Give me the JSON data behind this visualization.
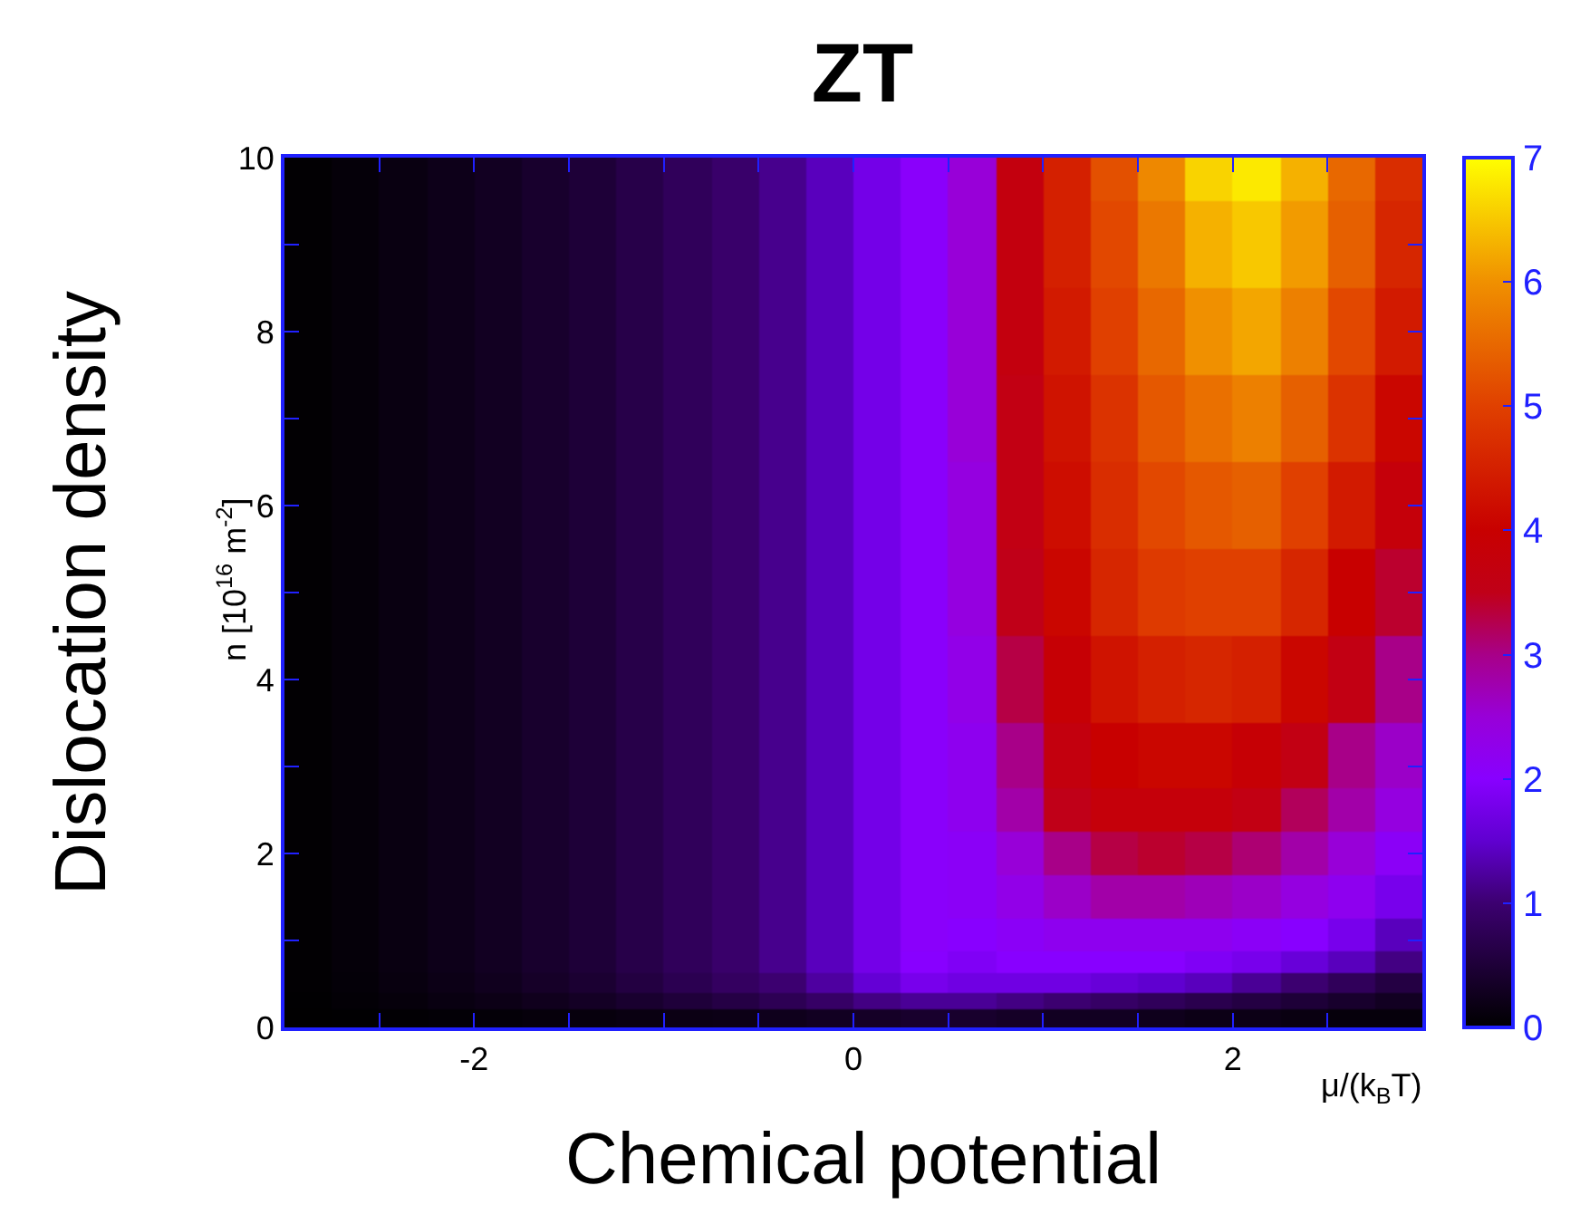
{
  "chart_data": {
    "type": "heatmap",
    "title": "ZT",
    "xlabel": "Chemical potential",
    "ylabel": "Dislocation density",
    "annotations": [
      "μ/(k$_{B}$T)",
      "n [10$^{16}$ m$^{-2}$]"
    ],
    "x": [
      -2.875,
      -2.625,
      -2.375,
      -2.125,
      -1.875,
      -1.625,
      -1.375,
      -1.125,
      -0.875,
      -0.625,
      -0.375,
      -0.125,
      0.125,
      0.375,
      0.625,
      0.875,
      1.125,
      1.375,
      1.625,
      1.875,
      2.125,
      2.375,
      2.625,
      2.875
    ],
    "y": [
      10,
      9,
      8,
      7,
      6,
      5,
      4,
      3,
      2.5,
      2,
      1.5,
      1,
      0.75,
      0.5,
      0.3,
      0.1
    ],
    "cells": [
      [
        0.03,
        0.08,
        0.15,
        0.22,
        0.3,
        0.4,
        0.5,
        0.65,
        0.8,
        0.95,
        1.15,
        1.4,
        1.75,
        2.05,
        2.5,
        3.7,
        4.5,
        5.2,
        5.9,
        6.6,
        6.8,
        6.3,
        5.5,
        4.7
      ],
      [
        0.03,
        0.08,
        0.15,
        0.22,
        0.3,
        0.4,
        0.5,
        0.65,
        0.8,
        0.95,
        1.15,
        1.4,
        1.75,
        2.05,
        2.5,
        3.7,
        4.5,
        5.1,
        5.7,
        6.3,
        6.5,
        6.1,
        5.4,
        4.6
      ],
      [
        0.03,
        0.08,
        0.15,
        0.22,
        0.3,
        0.4,
        0.5,
        0.65,
        0.8,
        0.95,
        1.15,
        1.4,
        1.75,
        2.05,
        2.5,
        3.7,
        4.4,
        5.0,
        5.5,
        6.0,
        6.2,
        5.8,
        5.1,
        4.4
      ],
      [
        0.03,
        0.08,
        0.15,
        0.22,
        0.3,
        0.4,
        0.5,
        0.65,
        0.8,
        0.95,
        1.15,
        1.4,
        1.75,
        2.05,
        2.5,
        3.6,
        4.3,
        4.8,
        5.3,
        5.6,
        5.8,
        5.4,
        4.8,
        4.1
      ],
      [
        0.03,
        0.08,
        0.15,
        0.22,
        0.3,
        0.4,
        0.5,
        0.65,
        0.8,
        0.95,
        1.15,
        1.4,
        1.75,
        2.05,
        2.4,
        3.6,
        4.2,
        4.7,
        5.1,
        5.3,
        5.4,
        5.0,
        4.4,
        3.8
      ],
      [
        0.03,
        0.08,
        0.15,
        0.22,
        0.3,
        0.4,
        0.5,
        0.65,
        0.8,
        0.95,
        1.15,
        1.4,
        1.75,
        2.05,
        2.4,
        3.5,
        4.1,
        4.6,
        4.9,
        5.0,
        5.0,
        4.6,
        4.0,
        3.4
      ],
      [
        0.03,
        0.08,
        0.15,
        0.22,
        0.3,
        0.4,
        0.5,
        0.65,
        0.8,
        0.95,
        1.15,
        1.4,
        1.75,
        2.05,
        2.3,
        3.3,
        3.9,
        4.3,
        4.5,
        4.6,
        4.5,
        4.1,
        3.6,
        3.0
      ],
      [
        0.03,
        0.08,
        0.15,
        0.22,
        0.3,
        0.4,
        0.5,
        0.65,
        0.8,
        0.95,
        1.15,
        1.4,
        1.75,
        2.05,
        2.2,
        3.0,
        3.7,
        4.0,
        4.1,
        4.1,
        3.9,
        3.6,
        3.0,
        2.6
      ],
      [
        0.03,
        0.08,
        0.15,
        0.22,
        0.3,
        0.4,
        0.5,
        0.65,
        0.8,
        0.95,
        1.15,
        1.4,
        1.75,
        2.05,
        2.2,
        2.8,
        3.5,
        3.8,
        3.8,
        3.8,
        3.6,
        3.2,
        2.8,
        2.4
      ],
      [
        0.03,
        0.08,
        0.15,
        0.22,
        0.3,
        0.4,
        0.5,
        0.65,
        0.8,
        0.95,
        1.15,
        1.4,
        1.75,
        2.05,
        2.1,
        2.5,
        3.0,
        3.3,
        3.4,
        3.3,
        3.1,
        2.8,
        2.5,
        2.1
      ],
      [
        0.03,
        0.08,
        0.15,
        0.22,
        0.3,
        0.4,
        0.5,
        0.65,
        0.8,
        0.95,
        1.15,
        1.4,
        1.75,
        2.05,
        2.1,
        2.3,
        2.6,
        2.8,
        2.8,
        2.7,
        2.6,
        2.4,
        2.2,
        1.8
      ],
      [
        0.03,
        0.08,
        0.15,
        0.22,
        0.3,
        0.4,
        0.5,
        0.65,
        0.8,
        0.95,
        1.15,
        1.4,
        1.75,
        2.05,
        2.0,
        2.1,
        2.2,
        2.2,
        2.2,
        2.2,
        2.1,
        2.0,
        1.8,
        1.4
      ],
      [
        0.03,
        0.08,
        0.15,
        0.22,
        0.3,
        0.4,
        0.5,
        0.65,
        0.8,
        0.95,
        1.15,
        1.4,
        1.75,
        2.0,
        1.9,
        2.0,
        2.0,
        2.0,
        2.0,
        1.9,
        1.8,
        1.6,
        1.4,
        1.1
      ],
      [
        0.03,
        0.07,
        0.13,
        0.2,
        0.27,
        0.36,
        0.45,
        0.58,
        0.72,
        0.86,
        1.0,
        1.25,
        1.55,
        1.8,
        1.7,
        1.7,
        1.7,
        1.6,
        1.5,
        1.4,
        1.2,
        1.0,
        0.8,
        0.6
      ],
      [
        0.02,
        0.05,
        0.1,
        0.15,
        0.2,
        0.26,
        0.33,
        0.42,
        0.52,
        0.62,
        0.75,
        0.9,
        1.1,
        1.2,
        1.2,
        1.1,
        1.0,
        0.9,
        0.8,
        0.7,
        0.6,
        0.5,
        0.4,
        0.3
      ],
      [
        0.01,
        0.02,
        0.04,
        0.05,
        0.07,
        0.1,
        0.12,
        0.15,
        0.18,
        0.2,
        0.25,
        0.3,
        0.35,
        0.4,
        0.4,
        0.35,
        0.3,
        0.3,
        0.25,
        0.2,
        0.2,
        0.15,
        0.1,
        0.1
      ]
    ],
    "xlim": [
      -3,
      3
    ],
    "ylim": [
      0,
      10
    ],
    "xticks": [
      {
        "value": -2.5,
        "label": null
      },
      -2,
      {
        "value": -1.5,
        "label": null
      },
      {
        "value": -1,
        "label": null
      },
      {
        "value": -0.5,
        "label": null
      },
      0,
      {
        "value": 0.5,
        "label": null
      },
      {
        "value": 1,
        "label": null
      },
      {
        "value": 1.5,
        "label": null
      },
      2,
      {
        "value": 2.5,
        "label": null
      }
    ],
    "yticks": [
      0,
      {
        "value": 1,
        "label": null
      },
      2,
      {
        "value": 3,
        "label": null
      },
      4,
      {
        "value": 5,
        "label": null
      },
      6,
      {
        "value": 7,
        "label": null
      },
      8,
      {
        "value": 9,
        "label": null
      },
      10
    ],
    "clim": [
      0,
      7
    ],
    "cticks": [
      0,
      1,
      2,
      3,
      4,
      5,
      6,
      7
    ]
  }
}
